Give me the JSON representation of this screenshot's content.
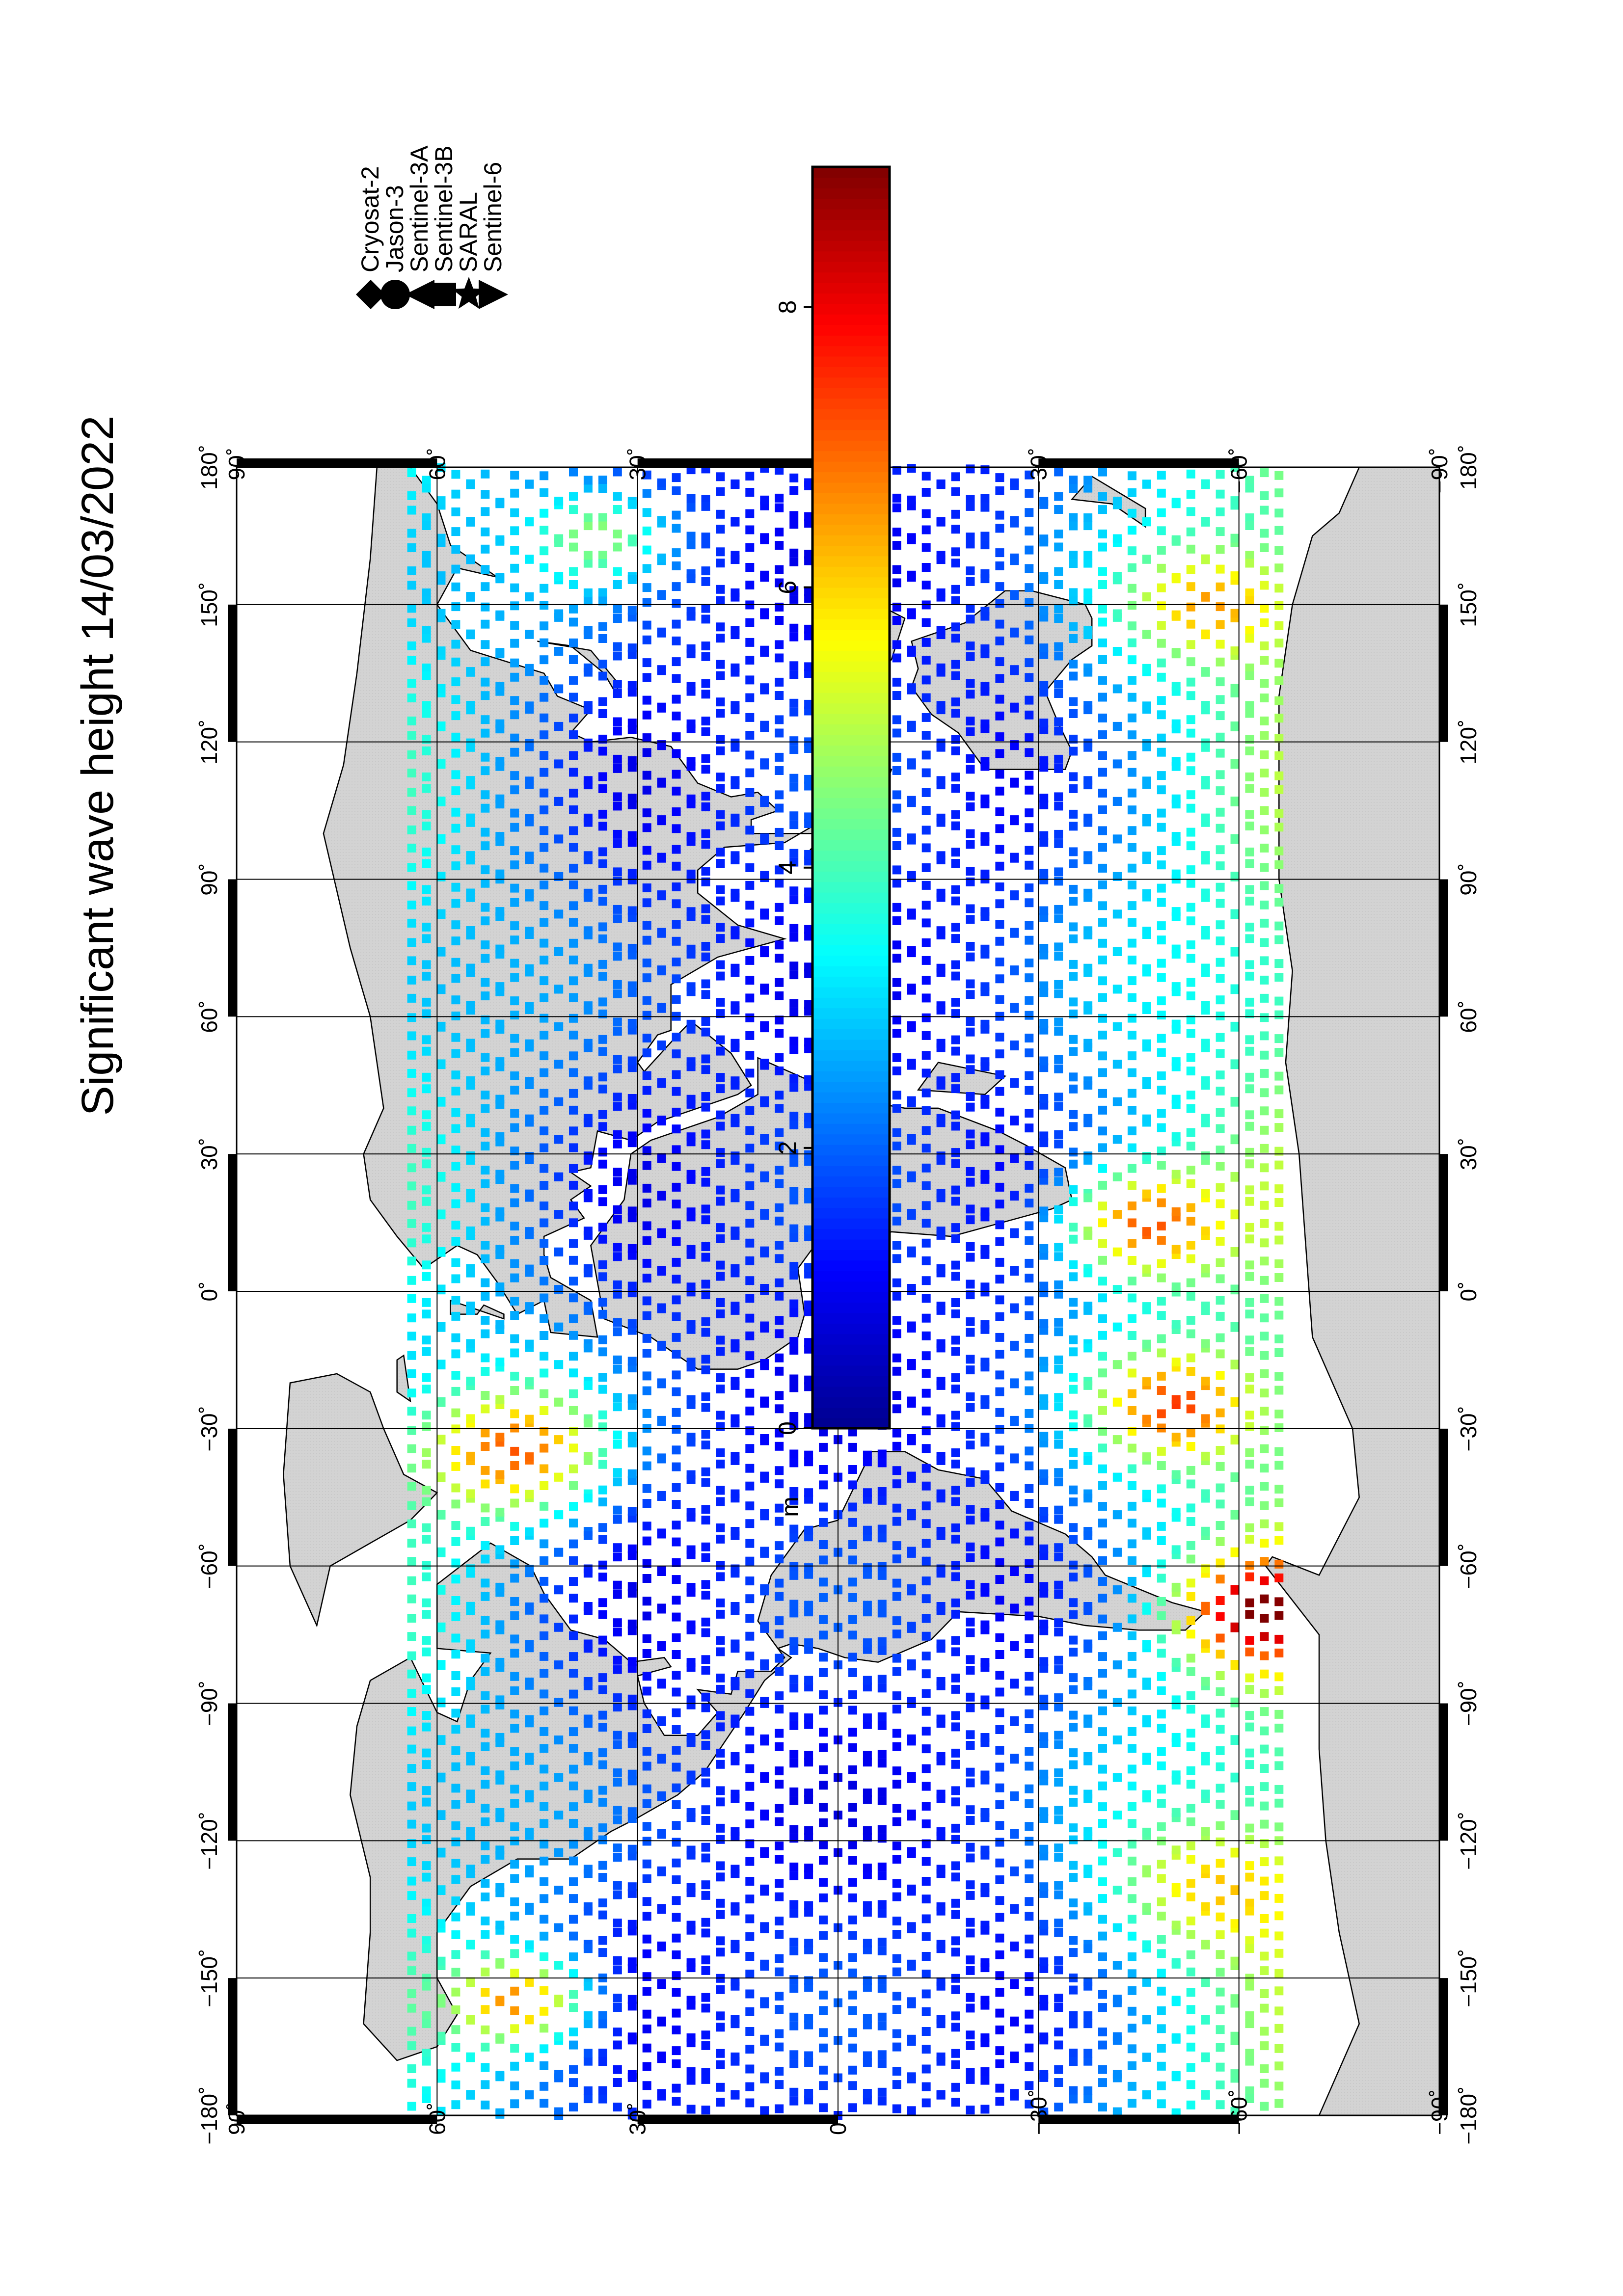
{
  "map": {
    "title": "Significant wave height 14/03/2022",
    "projection": "plate carree (rotated 90°)",
    "lon_range": [
      -180,
      180
    ],
    "lat_range": [
      -90,
      90
    ],
    "lon_ticks": [
      {
        "v": -180,
        "label": "−180˚"
      },
      {
        "v": -150,
        "label": "−150˚"
      },
      {
        "v": -120,
        "label": "−120˚"
      },
      {
        "v": -90,
        "label": "−90˚"
      },
      {
        "v": -60,
        "label": "−60˚"
      },
      {
        "v": -30,
        "label": "−30˚"
      },
      {
        "v": 0,
        "label": "0˚"
      },
      {
        "v": 30,
        "label": "30˚"
      },
      {
        "v": 60,
        "label": "60˚"
      },
      {
        "v": 90,
        "label": "90˚"
      },
      {
        "v": 120,
        "label": "120˚"
      },
      {
        "v": 150,
        "label": "150˚"
      },
      {
        "v": 180,
        "label": "180˚"
      }
    ],
    "lat_ticks": [
      {
        "v": 90,
        "label": "90˚"
      },
      {
        "v": 60,
        "label": "60˚"
      },
      {
        "v": 30,
        "label": "30˚"
      },
      {
        "v": 0,
        "label": "0˚"
      },
      {
        "v": -30,
        "label": "−30˚"
      },
      {
        "v": -60,
        "label": "−60˚"
      },
      {
        "v": -90,
        "label": "−90˚"
      }
    ],
    "land_color": "#d3d3d3",
    "ocean_color": "#ffffff"
  },
  "legend": {
    "satellites": [
      {
        "name": "Cryosat-2",
        "marker": "diamond"
      },
      {
        "name": "Jason-3",
        "marker": "circle"
      },
      {
        "name": "Sentinel-3A",
        "marker": "triangle-left"
      },
      {
        "name": "Sentinel-3B",
        "marker": "square"
      },
      {
        "name": "SARAL",
        "marker": "star"
      },
      {
        "name": "Sentinel-6",
        "marker": "triangle-right"
      }
    ]
  },
  "colorbar": {
    "unit": "m",
    "range": [
      0,
      9
    ],
    "ticks": [
      {
        "v": 0,
        "label": "0"
      },
      {
        "v": 2,
        "label": "2"
      },
      {
        "v": 4,
        "label": "4"
      },
      {
        "v": 6,
        "label": "6"
      },
      {
        "v": 8,
        "label": "8"
      }
    ],
    "colors": [
      "#00008f",
      "#0000ff",
      "#007fff",
      "#00ffff",
      "#7fff7f",
      "#ffff00",
      "#ff7f00",
      "#ff0000",
      "#7f0000"
    ]
  }
}
